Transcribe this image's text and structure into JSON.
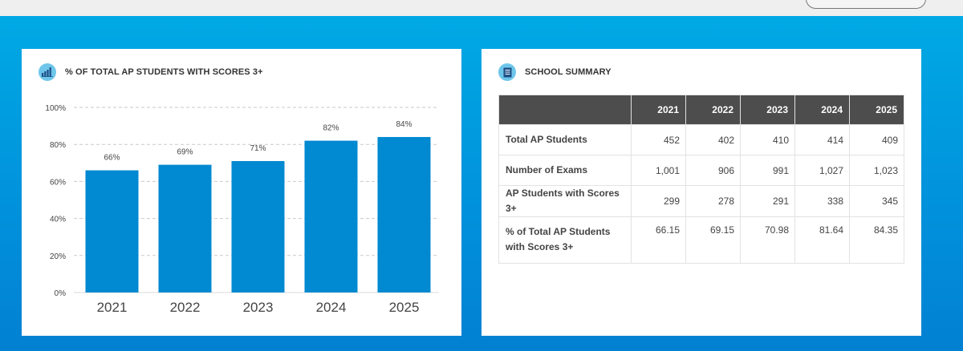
{
  "chart_card": {
    "title": "% OF TOTAL AP STUDENTS WITH SCORES 3+",
    "icon": "bar-chart-icon"
  },
  "summary_card": {
    "title": "SCHOOL SUMMARY",
    "icon": "document-icon",
    "columns": [
      "2021",
      "2022",
      "2023",
      "2024",
      "2025"
    ],
    "rows": [
      {
        "label": "Total AP Students",
        "values": [
          "452",
          "402",
          "410",
          "414",
          "409"
        ]
      },
      {
        "label": "Number of Exams",
        "values": [
          "1,001",
          "906",
          "991",
          "1,027",
          "1,023"
        ]
      },
      {
        "label": "AP Students with Scores 3+",
        "values": [
          "299",
          "278",
          "291",
          "338",
          "345"
        ]
      },
      {
        "label": "% of Total AP Students with Scores 3+",
        "values": [
          "66.15",
          "69.15",
          "70.98",
          "81.64",
          "84.35"
        ]
      }
    ]
  },
  "colors": {
    "bar": "#0189d1",
    "header_bg": "#4d4d4d",
    "hero_top": "#00a9e4",
    "hero_bottom": "#0280d2",
    "icon_circle": "#6ec6ea"
  },
  "chart_data": {
    "type": "bar",
    "title": "% OF TOTAL AP STUDENTS WITH SCORES 3+",
    "categories": [
      "2021",
      "2022",
      "2023",
      "2024",
      "2025"
    ],
    "values": [
      66,
      69,
      71,
      82,
      84
    ],
    "data_labels": [
      "66%",
      "69%",
      "71%",
      "82%",
      "84%"
    ],
    "y_ticks": [
      "0%",
      "20%",
      "40%",
      "60%",
      "80%",
      "100%"
    ],
    "ylim": [
      0,
      100
    ],
    "grid": true,
    "xlabel": "",
    "ylabel": ""
  }
}
